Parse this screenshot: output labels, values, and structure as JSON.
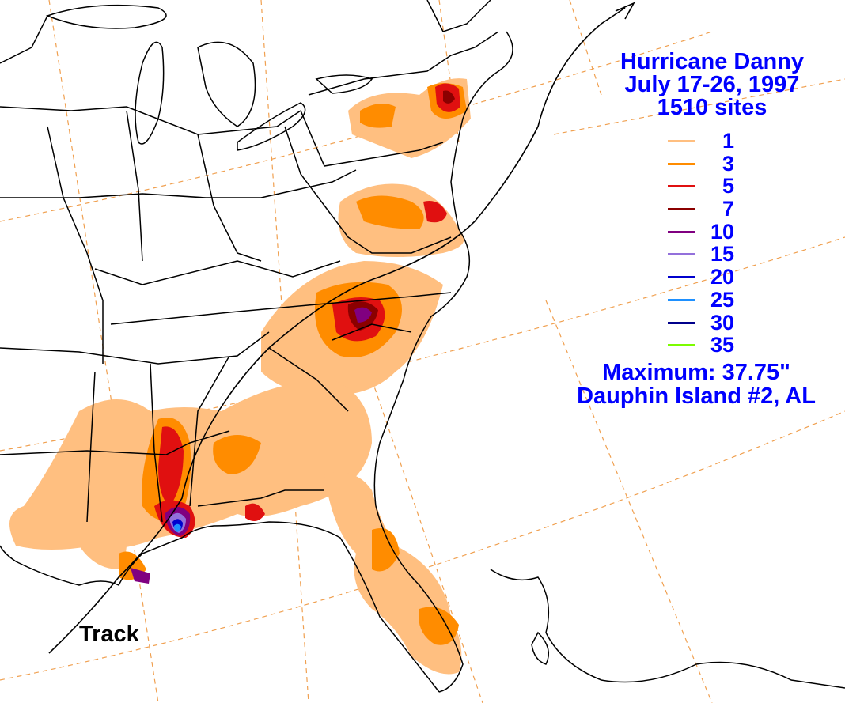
{
  "title": {
    "line1": "Hurricane Danny",
    "line2": "July 17-26, 1997",
    "line3": "1510 sites"
  },
  "legend": [
    {
      "label": "1",
      "color": "#FFBF80"
    },
    {
      "label": "3",
      "color": "#FF8C00"
    },
    {
      "label": "5",
      "color": "#E01010"
    },
    {
      "label": "7",
      "color": "#8B0000"
    },
    {
      "label": "10",
      "color": "#800080"
    },
    {
      "label": "15",
      "color": "#9370DB"
    },
    {
      "label": "20",
      "color": "#0000CD"
    },
    {
      "label": "25",
      "color": "#1E90FF"
    },
    {
      "label": "30",
      "color": "#00008B"
    },
    {
      "label": "35",
      "color": "#7CFC00"
    }
  ],
  "maximum": {
    "label": "Maximum:  37.75\"",
    "location": "Dauphin Island #2, AL"
  },
  "track_label": "Track",
  "colors": {
    "text": "#0000FF",
    "outline": "#000000",
    "graticule": "#F0A050"
  }
}
